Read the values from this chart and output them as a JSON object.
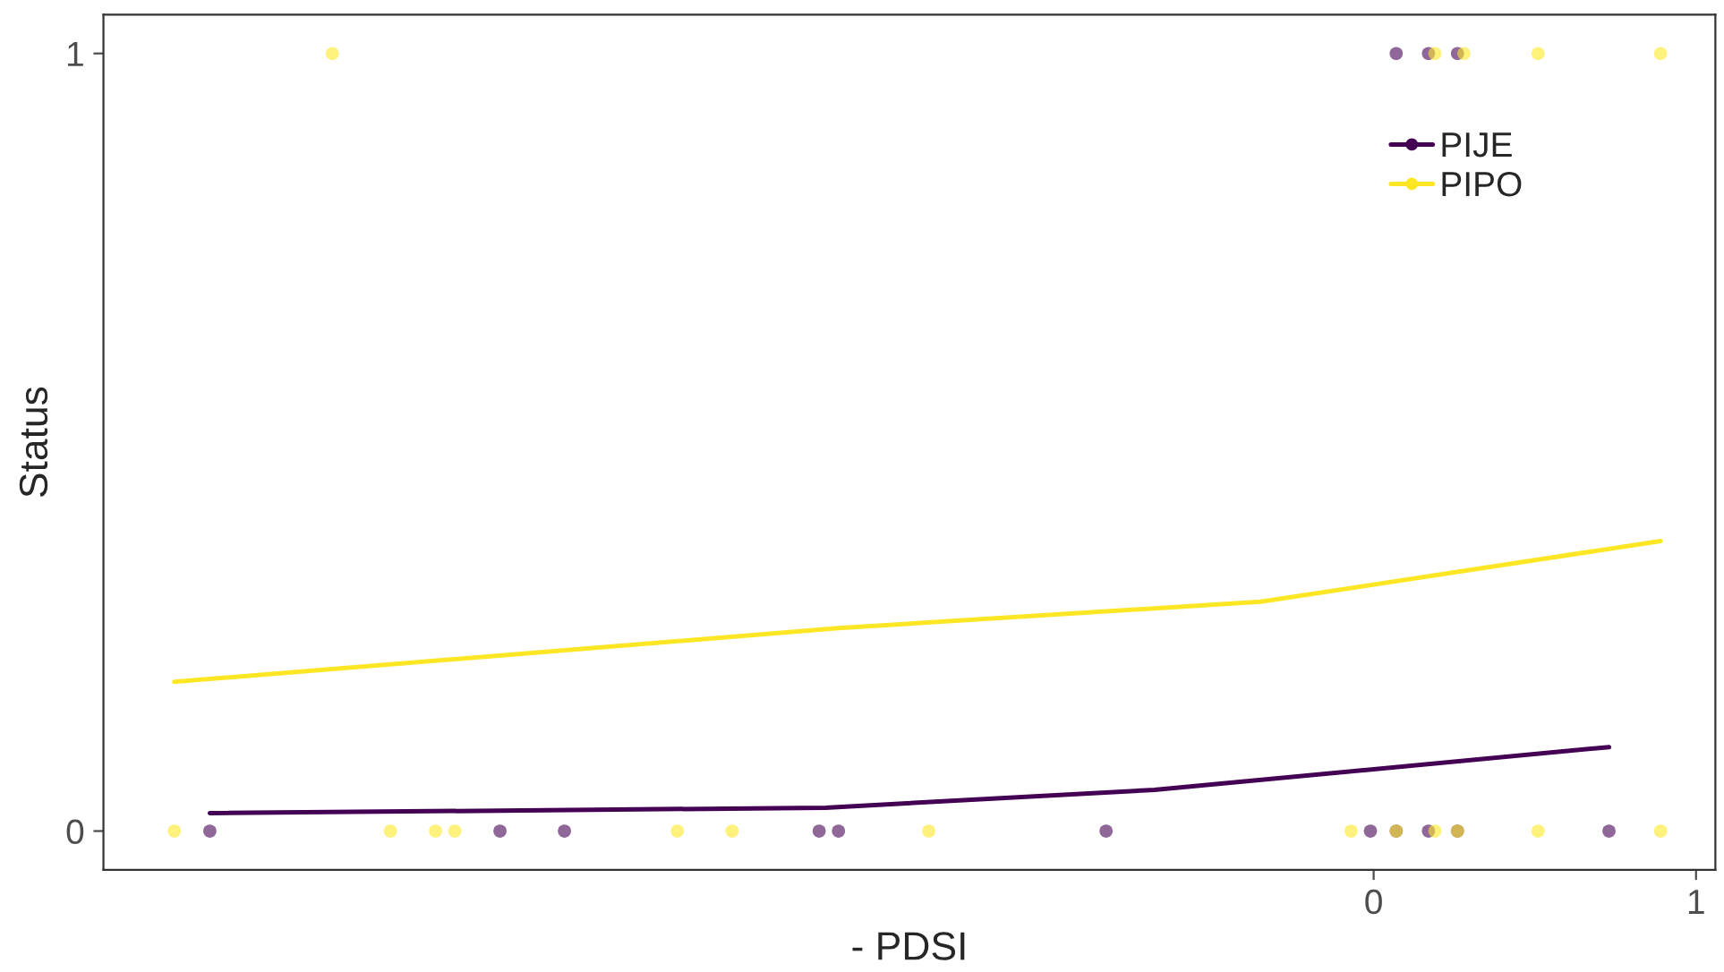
{
  "chart_data": {
    "type": "scatter",
    "xlabel": "- PDSI",
    "ylabel": "Status",
    "xlim": [
      -3.94,
      1.06
    ],
    "ylim": [
      -0.05,
      1.05
    ],
    "xticks": [
      0,
      1
    ],
    "yticks": [
      0,
      1
    ],
    "grid": false,
    "legend": "top right",
    "series": [
      {
        "name": "PIJE",
        "color": "#440154",
        "marker": "circle",
        "x": [
          -3.61,
          -2.71,
          -2.51,
          -1.72,
          -1.66,
          -0.83,
          -0.01,
          0.07,
          0.17,
          0.26,
          0.73,
          0.07,
          0.17,
          0.26
        ],
        "values": [
          0,
          0,
          0,
          0,
          0,
          0,
          0,
          0,
          0,
          0,
          0,
          1,
          1,
          1
        ]
      },
      {
        "name": "PIPO",
        "color": "#fde725",
        "marker": "circle",
        "x": [
          -3.72,
          -3.05,
          -2.91,
          -2.85,
          -2.16,
          -1.99,
          -1.38,
          -0.07,
          0.07,
          0.19,
          0.26,
          0.51,
          0.89,
          -3.23,
          0.19,
          0.28,
          0.51,
          0.89
        ],
        "values": [
          0,
          0,
          0,
          0,
          0,
          0,
          0,
          0,
          0,
          0,
          0,
          0,
          0,
          1,
          1,
          1,
          1,
          1
        ]
      },
      {
        "color": "#440154",
        "type": "line",
        "marker": "none",
        "x": [
          -3.61,
          -1.7,
          -0.68,
          0.73
        ],
        "values": [
          0.023,
          0.03,
          0.053,
          0.108
        ]
      },
      {
        "color": "#fde725",
        "type": "line",
        "marker": "none",
        "x": [
          -3.72,
          -1.66,
          -0.35,
          0.89
        ],
        "values": [
          0.192,
          0.261,
          0.295,
          0.373
        ]
      }
    ]
  }
}
